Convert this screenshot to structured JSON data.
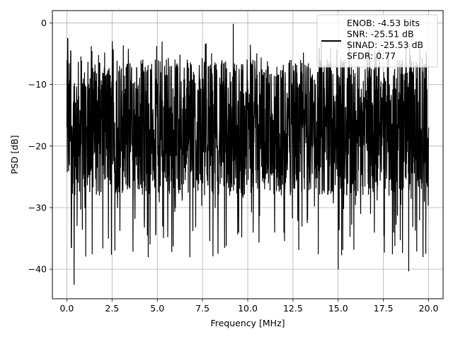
{
  "chart_data": {
    "type": "line",
    "xlabel": "Frequency [MHz]",
    "ylabel": "PSD [dB]",
    "xlim": [
      -0.8,
      20.8
    ],
    "ylim": [
      -44.8,
      2.0
    ],
    "xticks": [
      0.0,
      2.5,
      5.0,
      7.5,
      10.0,
      12.5,
      15.0,
      17.5,
      20.0
    ],
    "xtick_labels": [
      "0.0",
      "2.5",
      "5.0",
      "7.5",
      "10.0",
      "12.5",
      "15.0",
      "17.5",
      "20.0"
    ],
    "yticks": [
      0,
      -10,
      -20,
      -30,
      -40
    ],
    "ytick_labels": [
      "0",
      "−10",
      "−20",
      "−30",
      "−40"
    ],
    "grid": true,
    "legend_position": "top-right",
    "series": [
      {
        "name": "ENOB: -4.53 bits\nSNR: -25.51 dB\nSINAD: -25.53 dB\nSFDR: 0.77",
        "color": "#000000",
        "approximate": "dense noise spectrum, mostly between -30 and -5 dB; envelope values sampled below",
        "x": [
          0.0,
          0.05,
          0.1,
          0.2,
          0.25,
          0.3,
          0.4,
          0.5,
          0.8,
          1.0,
          1.2,
          1.4,
          1.5,
          1.8,
          2.0,
          2.3,
          2.5,
          2.8,
          3.0,
          3.2,
          3.5,
          4.0,
          4.2,
          4.5,
          5.0,
          5.3,
          5.5,
          6.0,
          6.4,
          6.8,
          7.0,
          7.5,
          8.0,
          8.2,
          8.5,
          9.0,
          9.2,
          9.5,
          10.0,
          10.3,
          10.5,
          11.0,
          11.5,
          12.0,
          12.5,
          13.0,
          13.5,
          13.9,
          14.4,
          15.0,
          15.5,
          16.0,
          16.5,
          17.0,
          17.5,
          18.0,
          18.4,
          18.9,
          19.1,
          19.5,
          20.0
        ],
        "y": [
          -17,
          -2.5,
          -24,
          -8,
          -36.5,
          -20,
          -42.5,
          -15,
          -12,
          -30,
          -10,
          -37.5,
          -8,
          -28,
          -12,
          -35,
          -12,
          -30,
          -8,
          -25,
          -10,
          -27,
          -6,
          -38,
          -10,
          -33,
          -6,
          -30,
          -14,
          -38,
          -8,
          -26,
          -5,
          -30,
          -10,
          -28,
          -0.2,
          -34,
          -14,
          -34,
          -5,
          -20,
          -12,
          -34,
          -7,
          -33,
          -9,
          -37.5,
          -6,
          -40,
          -9,
          -28,
          -10,
          -34,
          -11,
          -37.5,
          -13,
          -40.3,
          -8,
          -32,
          -17
        ]
      }
    ]
  }
}
